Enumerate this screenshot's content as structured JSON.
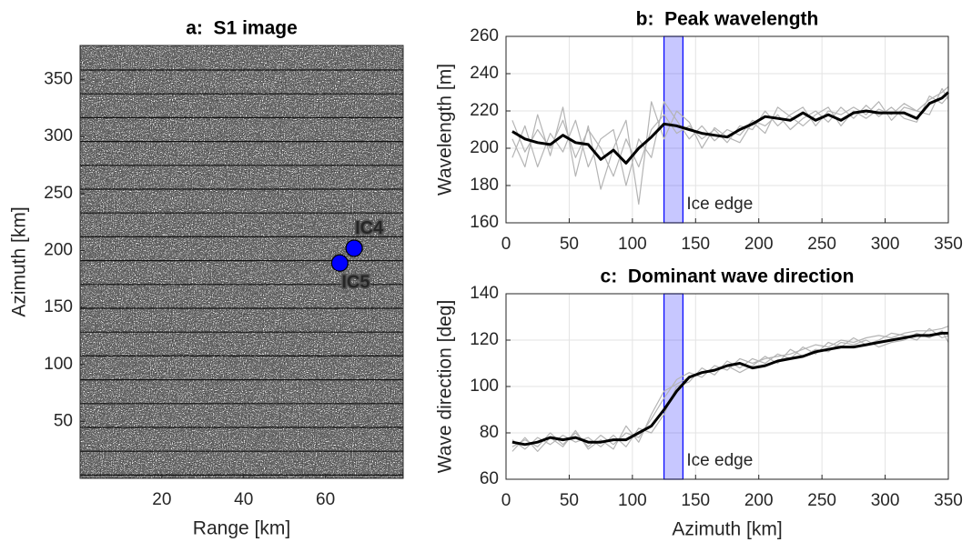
{
  "chart_data": [
    {
      "type": "image",
      "title": "a:  S1 image",
      "x_label": "Range [km]",
      "y_label": "Azimuth [km]",
      "xlim": [
        0,
        79
      ],
      "xticks": [
        20,
        40,
        60
      ],
      "ylim": [
        0,
        380
      ],
      "yticks": [
        50,
        100,
        150,
        200,
        250,
        300,
        350
      ],
      "points": [
        {
          "label": "IC4",
          "x": 67,
          "y": 202,
          "color": "#0000ff"
        },
        {
          "label": "IC5",
          "x": 63.5,
          "y": 189,
          "color": "#0000ff"
        }
      ]
    },
    {
      "type": "line",
      "title": "b:  Peak wavelength",
      "y_label": "Wavelength [m]",
      "xlim": [
        0,
        350
      ],
      "xticks": [
        0,
        50,
        100,
        150,
        200,
        250,
        300,
        350
      ],
      "ylim": [
        160,
        260
      ],
      "yticks": [
        160,
        180,
        200,
        220,
        240,
        260
      ],
      "grid": true,
      "ice_edge": [
        125,
        140
      ],
      "ice_edge_color": "#0000ff",
      "ice_edge_label": "Ice edge",
      "x": [
        5,
        15,
        25,
        35,
        45,
        55,
        65,
        75,
        85,
        95,
        105,
        115,
        125,
        135,
        145,
        155,
        165,
        175,
        185,
        195,
        205,
        215,
        225,
        235,
        245,
        255,
        265,
        275,
        285,
        295,
        305,
        315,
        325,
        335,
        345,
        350
      ],
      "series": [
        {
          "color": "#b4b4b4",
          "values": [
            215,
            198,
            210,
            200,
            215,
            195,
            210,
            200,
            185,
            205,
            190,
            210,
            218,
            208,
            212,
            205,
            210,
            203,
            212,
            210,
            220,
            212,
            218,
            222,
            212,
            220,
            218,
            222,
            218,
            225,
            215,
            222,
            220,
            226,
            230,
            233
          ]
        },
        {
          "color": "#b4b4b4",
          "values": [
            195,
            212,
            190,
            208,
            198,
            215,
            190,
            205,
            210,
            180,
            205,
            195,
            225,
            215,
            205,
            212,
            204,
            210,
            207,
            215,
            212,
            218,
            210,
            216,
            220,
            214,
            222,
            216,
            223,
            217,
            222,
            216,
            214,
            228,
            224,
            228
          ]
        },
        {
          "color": "#b4b4b4",
          "values": [
            205,
            190,
            218,
            196,
            222,
            185,
            212,
            178,
            200,
            215,
            170,
            225,
            205,
            220,
            214,
            200,
            211,
            206,
            203,
            214,
            208,
            222,
            217,
            212,
            218,
            222,
            212,
            220,
            216,
            221,
            218,
            224,
            220,
            218,
            232,
            226
          ]
        },
        {
          "color": "#000000",
          "values": [
            209,
            205,
            203,
            202,
            207,
            203,
            202,
            194,
            199,
            192,
            200,
            206,
            213,
            212,
            210,
            208,
            207,
            206,
            210,
            213,
            217,
            216,
            215,
            219,
            215,
            218,
            215,
            219,
            220,
            219,
            219,
            219,
            216,
            224,
            227,
            230
          ]
        }
      ]
    },
    {
      "type": "line",
      "title": "c:  Dominant wave direction",
      "x_label": "Azimuth [km]",
      "y_label": "Wave direction [deg]",
      "xlim": [
        0,
        350
      ],
      "xticks": [
        0,
        50,
        100,
        150,
        200,
        250,
        300,
        350
      ],
      "ylim": [
        60,
        140
      ],
      "yticks": [
        60,
        80,
        100,
        120,
        140
      ],
      "grid": true,
      "ice_edge": [
        125,
        140
      ],
      "ice_edge_color": "#0000ff",
      "ice_edge_label": "Ice edge",
      "x": [
        5,
        15,
        25,
        35,
        45,
        55,
        65,
        75,
        85,
        95,
        105,
        115,
        125,
        135,
        145,
        155,
        165,
        175,
        185,
        195,
        205,
        215,
        225,
        235,
        245,
        255,
        265,
        275,
        285,
        295,
        305,
        315,
        325,
        335,
        345,
        350
      ],
      "series": [
        {
          "color": "#b4b4b4",
          "values": [
            74,
            77,
            74,
            80,
            75,
            80,
            74,
            79,
            75,
            80,
            78,
            86,
            95,
            103,
            106,
            104,
            109,
            107,
            112,
            110,
            112,
            113,
            114,
            116,
            118,
            117,
            120,
            119,
            121,
            122,
            121,
            123,
            124,
            124,
            125,
            126
          ]
        },
        {
          "color": "#b4b4b4",
          "values": [
            77,
            73,
            78,
            75,
            79,
            76,
            78,
            74,
            79,
            74,
            82,
            80,
            88,
            100,
            102,
            108,
            105,
            111,
            108,
            112,
            110,
            114,
            112,
            117,
            114,
            119,
            117,
            121,
            118,
            120,
            123,
            122,
            120,
            125,
            121,
            122
          ]
        },
        {
          "color": "#b4b4b4",
          "values": [
            72,
            78,
            72,
            78,
            74,
            81,
            73,
            77,
            73,
            83,
            76,
            88,
            98,
            101,
            104,
            106,
            107,
            109,
            106,
            109,
            113,
            110,
            116,
            113,
            116,
            115,
            119,
            118,
            120,
            117,
            119,
            120,
            123,
            121,
            124,
            119
          ]
        },
        {
          "color": "#000000",
          "values": [
            76,
            75,
            76,
            78,
            77,
            78,
            76,
            76,
            77,
            77,
            80,
            83,
            90,
            98,
            104,
            106,
            107,
            109,
            110,
            108,
            109,
            111,
            112,
            113,
            115,
            116,
            117,
            117,
            118,
            119,
            120,
            121,
            122,
            122,
            123,
            123
          ]
        }
      ]
    }
  ]
}
